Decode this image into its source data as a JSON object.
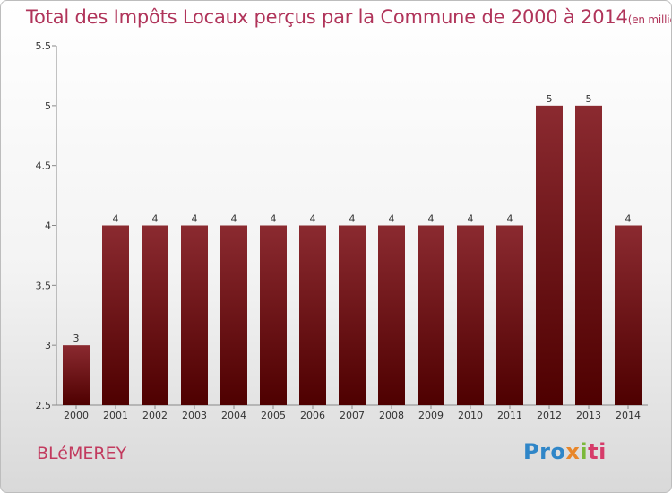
{
  "title": "Total des Impôts Locaux perçus par la Commune de 2000 à 2014",
  "title_unit": "(en milliers d'€)",
  "commune": "BLéMEREY",
  "logo": {
    "p1": "Pro",
    "p2": "x",
    "p3": "i",
    "p4": "ti"
  },
  "colors": {
    "bar_top": "#8b2a30",
    "bar_bottom": "#4e0000",
    "title": "#b0345a"
  },
  "chart_data": {
    "type": "bar",
    "categories": [
      "2000",
      "2001",
      "2002",
      "2003",
      "2004",
      "2005",
      "2006",
      "2007",
      "2008",
      "2009",
      "2010",
      "2011",
      "2012",
      "2013",
      "2014"
    ],
    "values": [
      3,
      4,
      4,
      4,
      4,
      4,
      4,
      4,
      4,
      4,
      4,
      4,
      5,
      5,
      4
    ],
    "value_labels": [
      "3",
      "4",
      "4",
      "4",
      "4",
      "4",
      "4",
      "4",
      "4",
      "4",
      "4",
      "4",
      "5",
      "5",
      "4"
    ],
    "ylim": [
      2.5,
      5.5
    ],
    "yticks": [
      "2.5",
      "3",
      "3.5",
      "4",
      "4.5",
      "5",
      "5.5"
    ],
    "grid": false,
    "legend": "none"
  }
}
